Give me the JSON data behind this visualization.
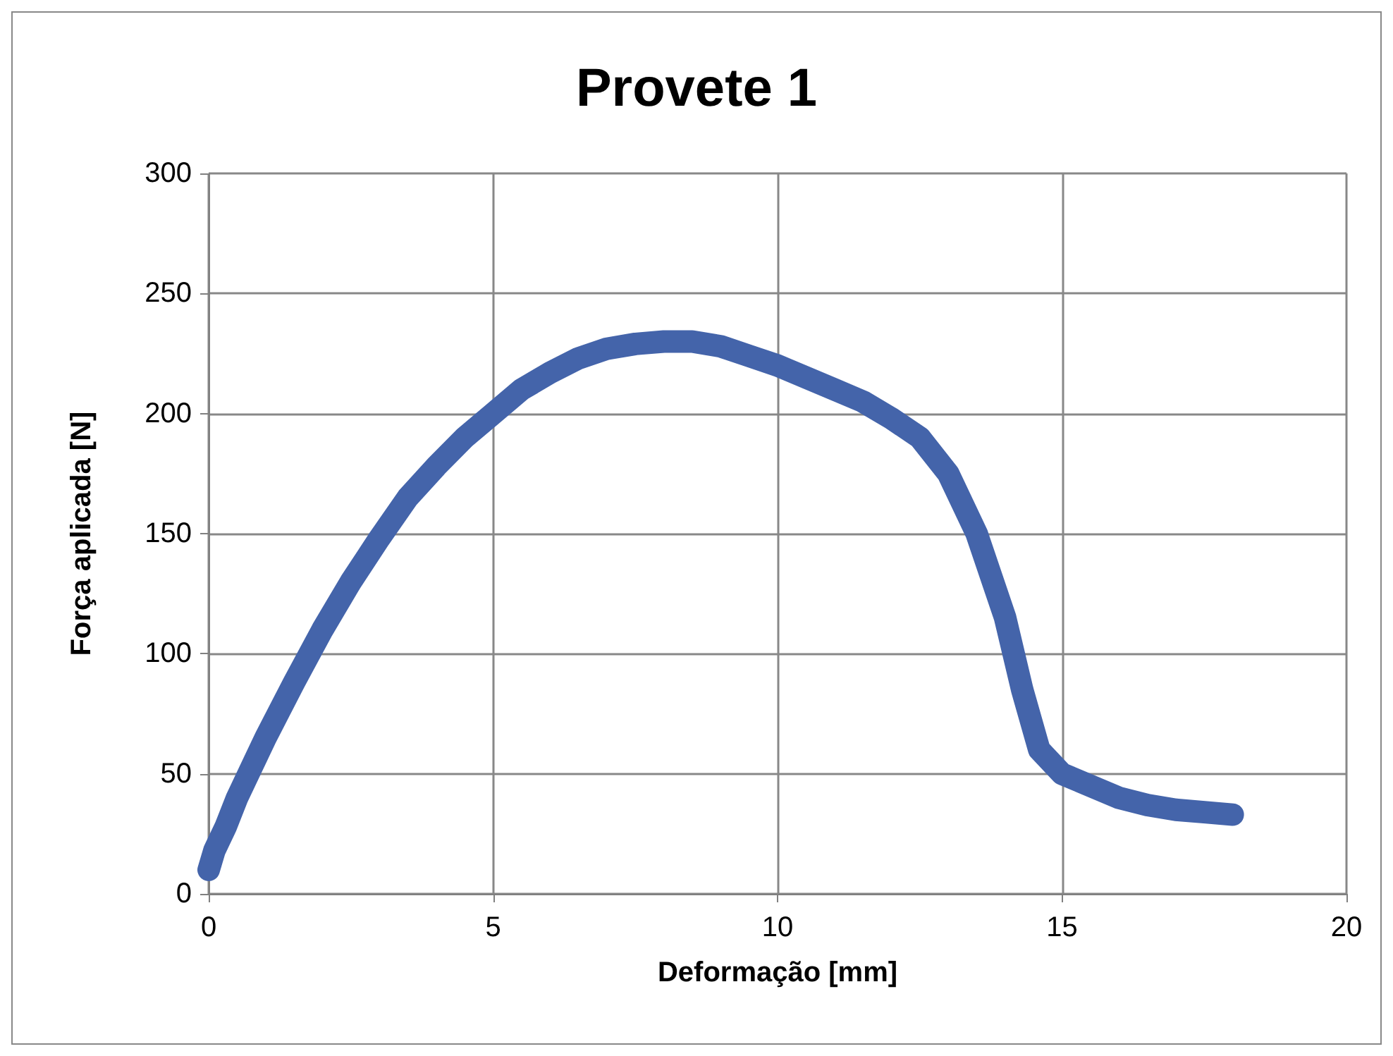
{
  "chart_data": {
    "type": "line",
    "title": "Provete 1",
    "xlabel": "Deformação [mm]",
    "ylabel": "Força aplicada [N]",
    "x": [
      0,
      0.1,
      0.3,
      0.5,
      0.8,
      1,
      1.5,
      2,
      2.5,
      3,
      3.5,
      4,
      4.5,
      5,
      5.5,
      6,
      6.5,
      7,
      7.5,
      8,
      8.5,
      9,
      9.5,
      10,
      10.5,
      11,
      11.5,
      12,
      12.5,
      13,
      13.5,
      14,
      14.3,
      14.6,
      15,
      15.5,
      16,
      16.5,
      17,
      17.5,
      18
    ],
    "series": [
      {
        "color": "#4464aa",
        "values": [
          10,
          18,
          28,
          40,
          55,
          65,
          88,
          110,
          130,
          148,
          165,
          178,
          190,
          200,
          210,
          217,
          223,
          227,
          229,
          230,
          230,
          228,
          224,
          220,
          215,
          210,
          205,
          198,
          190,
          175,
          150,
          115,
          85,
          60,
          50,
          45,
          40,
          37,
          35,
          34,
          33
        ]
      }
    ],
    "xlim": [
      0,
      20
    ],
    "xticks": [
      0,
      5,
      10,
      15,
      20
    ],
    "ylim": [
      0,
      300
    ],
    "yticks": [
      0,
      50,
      100,
      150,
      200,
      250,
      300
    ],
    "grid": true,
    "line_style": "solid"
  }
}
